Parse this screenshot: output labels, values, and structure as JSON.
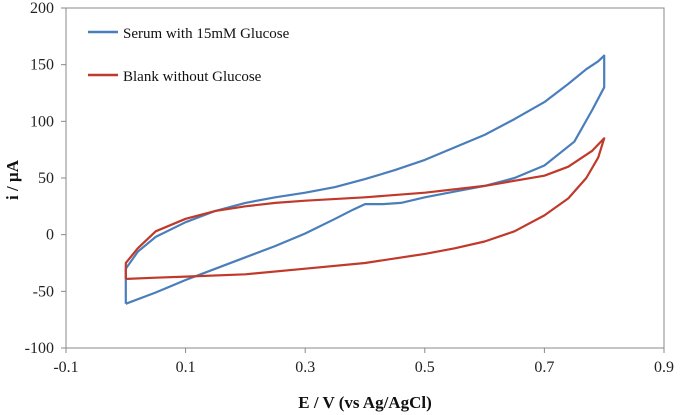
{
  "chart_data": {
    "type": "line",
    "title": "",
    "xlabel": "E / V (vs Ag/AgCl)",
    "ylabel": "i / µA",
    "xlim": [
      -0.1,
      0.9
    ],
    "ylim": [
      -100,
      200
    ],
    "xticks": [
      "-0.1",
      "0.1",
      "0.3",
      "0.5",
      "0.7",
      "0.9"
    ],
    "yticks": [
      "-100",
      "-50",
      "0",
      "50",
      "100",
      "150",
      "200"
    ],
    "grid": false,
    "legend": "top-left",
    "series": [
      {
        "name": "Serum with 15mM Glucose",
        "color": "#4a7ebb",
        "x": [
          0.0,
          0.05,
          0.1,
          0.15,
          0.2,
          0.25,
          0.3,
          0.35,
          0.38,
          0.4,
          0.43,
          0.46,
          0.5,
          0.55,
          0.6,
          0.65,
          0.7,
          0.75,
          0.78,
          0.8,
          0.8,
          0.79,
          0.77,
          0.74,
          0.7,
          0.65,
          0.6,
          0.55,
          0.5,
          0.45,
          0.4,
          0.35,
          0.3,
          0.25,
          0.2,
          0.15,
          0.1,
          0.05,
          0.02,
          0.0,
          0.0
        ],
        "y": [
          -61,
          -51,
          -40,
          -30,
          -20,
          -10,
          1,
          14,
          22,
          27,
          27,
          28,
          33,
          38,
          43,
          50,
          61,
          82,
          110,
          130,
          158,
          153,
          146,
          133,
          117,
          102,
          88,
          77,
          66,
          57,
          49,
          42,
          37,
          33,
          28,
          21,
          11,
          -2,
          -15,
          -30,
          -61
        ]
      },
      {
        "name": "Blank without Glucose",
        "color": "#c0392b",
        "x": [
          0.0,
          0.05,
          0.1,
          0.2,
          0.3,
          0.4,
          0.5,
          0.55,
          0.6,
          0.65,
          0.7,
          0.74,
          0.77,
          0.79,
          0.8,
          0.78,
          0.74,
          0.7,
          0.6,
          0.5,
          0.4,
          0.3,
          0.25,
          0.2,
          0.15,
          0.1,
          0.05,
          0.02,
          0.0,
          0.0
        ],
        "y": [
          -39,
          -38,
          -37,
          -35,
          -30,
          -25,
          -17,
          -12,
          -6,
          3,
          17,
          32,
          50,
          68,
          85,
          74,
          60,
          52,
          43,
          37,
          33,
          30,
          28,
          25,
          21,
          14,
          3,
          -12,
          -25,
          -39
        ]
      }
    ]
  }
}
